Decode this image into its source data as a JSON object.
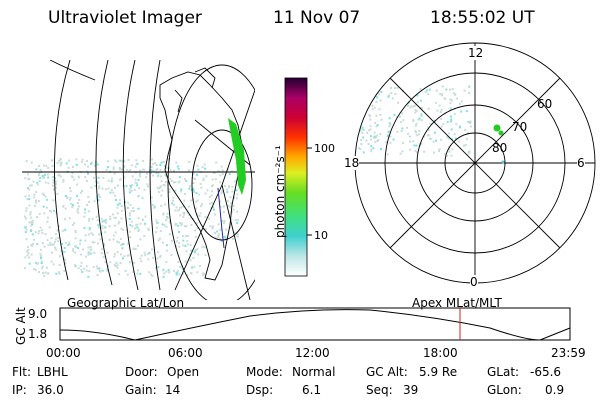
{
  "header": {
    "instrument": "Ultraviolet Imager",
    "date": "11 Nov 07",
    "time": "18:55:02 UT"
  },
  "colorbar": {
    "unit_label": "photon cm⁻²s⁻¹",
    "ticks": [
      "100",
      "10"
    ]
  },
  "polar_plot": {
    "mlt_labels": [
      "12",
      "18",
      "6",
      "0"
    ],
    "lat_labels": [
      "60",
      "70",
      "80"
    ]
  },
  "map_labels": {
    "left": "Geographic Lat/Lon",
    "right": "Apex MLat/MLT"
  },
  "altitude_plot": {
    "axis_label": "GC Alt",
    "ticks": [
      "9.0",
      "1.8"
    ],
    "time_ticks": [
      "00:00",
      "06:00",
      "12:00",
      "18:00",
      "23:59"
    ],
    "marker_time": "18:55"
  },
  "status": {
    "filter_label": "Flt:",
    "filter_value": "LBHL",
    "door_label": "Door:",
    "door_value": "Open",
    "mode_label": "Mode:",
    "mode_value": "Normal",
    "gcalt_label": "GC Alt:",
    "gcalt_value": "5.9 Re",
    "glat_label": "GLat:",
    "glat_value": "-65.6",
    "ip_label": "IP:",
    "ip_value": "36.0",
    "gain_label": "Gain:",
    "gain_value": "14",
    "dsp_label": "Dsp:",
    "dsp_value": "6.1",
    "seq_label": "Seq:",
    "seq_value": "39",
    "glon_label": "GLon:",
    "glon_value": "0.9"
  },
  "colors": {
    "text": "#000000",
    "speckle": "#c9ddd9",
    "speckle_bright": "#7fe3e3",
    "aurora_green": "#22cc22",
    "marker_red": "#cc2222"
  }
}
